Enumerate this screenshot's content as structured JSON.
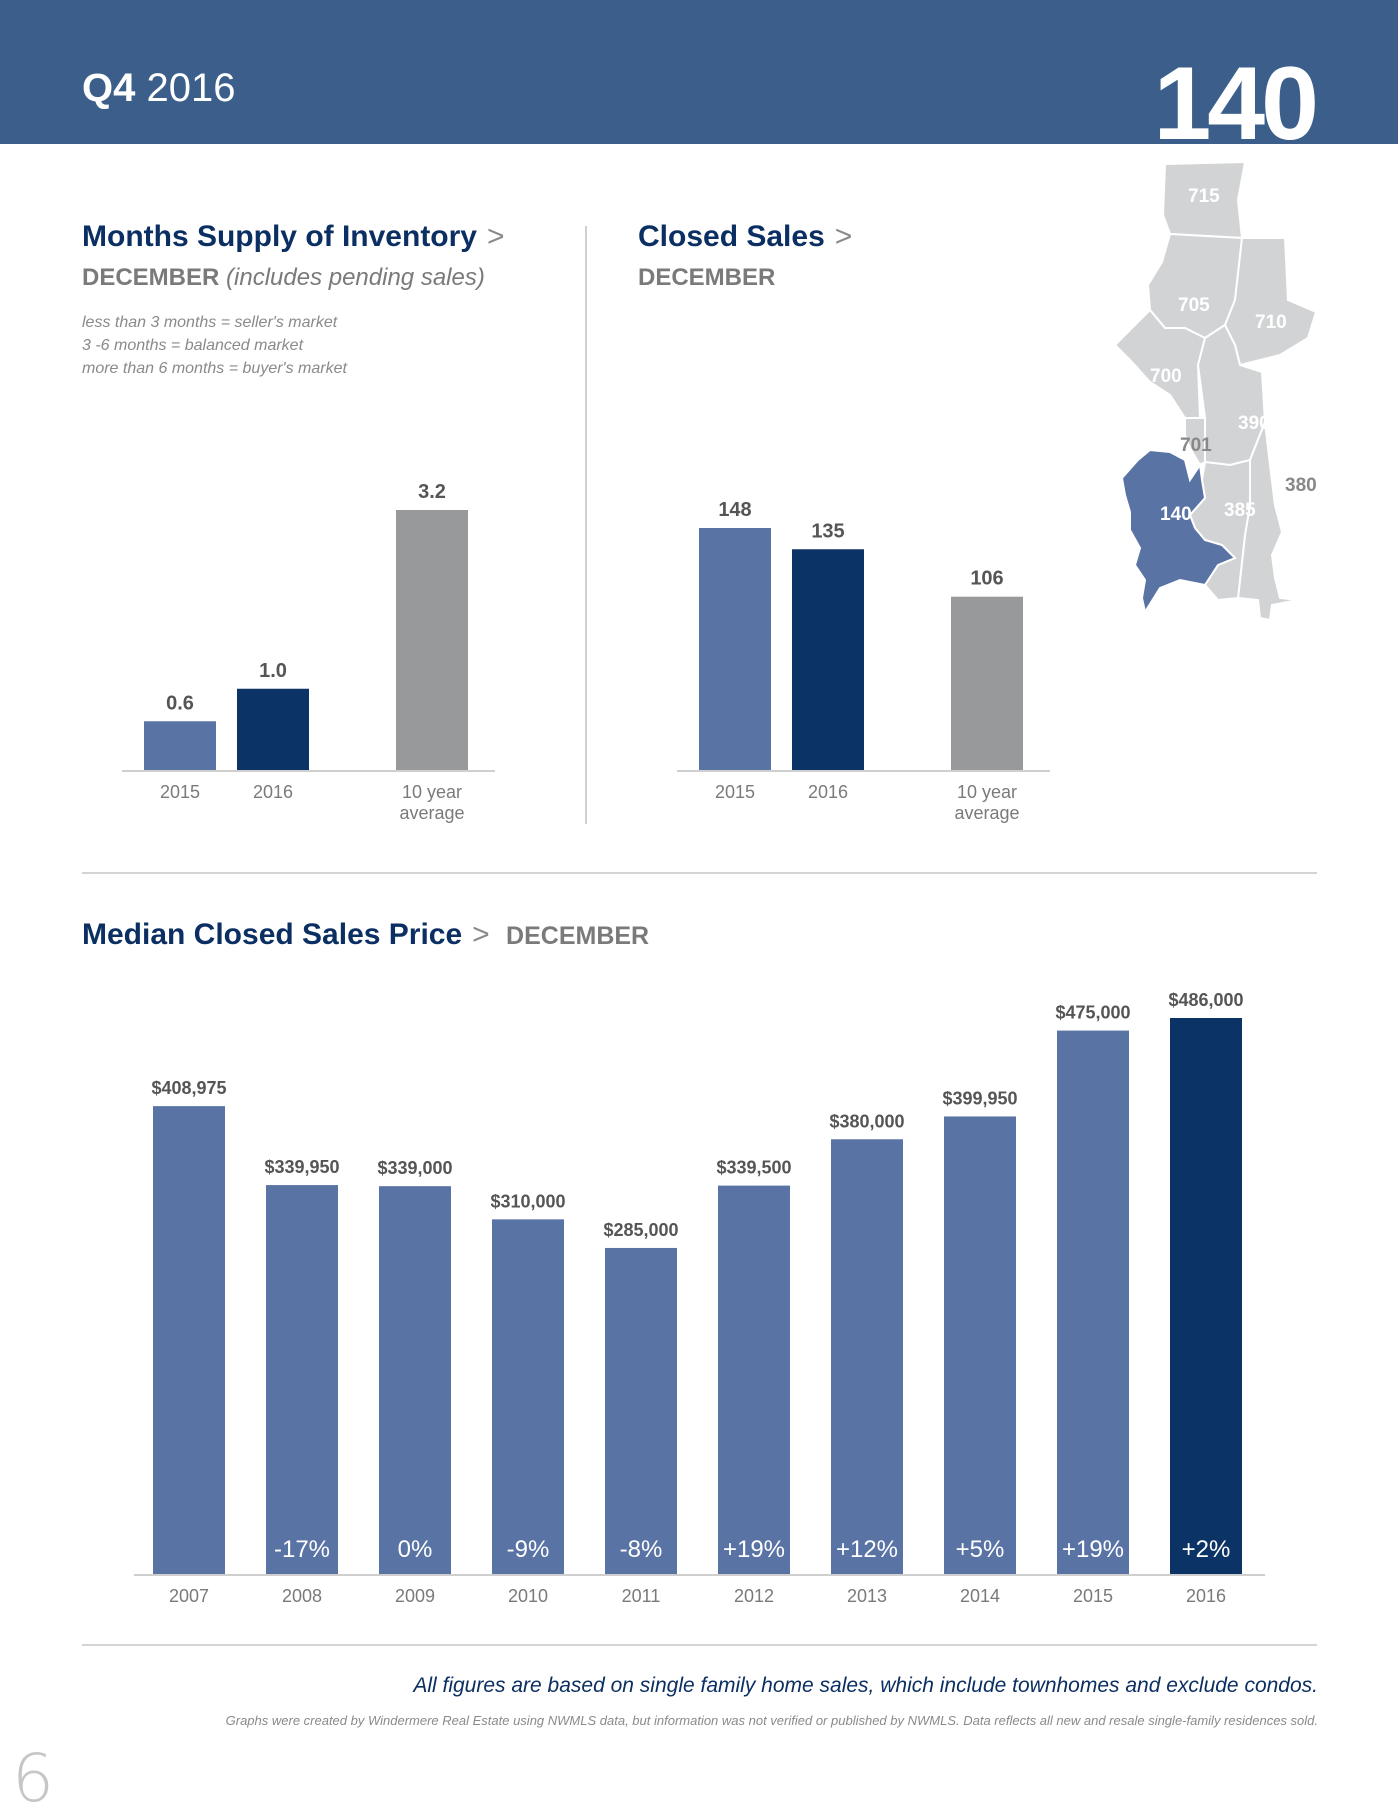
{
  "header": {
    "quarter_bold": "Q4",
    "year": "2016",
    "area_number": "140"
  },
  "months_supply": {
    "title": "Months Supply of Inventory",
    "arrow": ">",
    "subtitle": "DECEMBER",
    "subtitle_note": "(includes pending sales)",
    "legend": [
      "less than 3 months = seller's market",
      "3 -6 months = balanced market",
      "more than 6 months = buyer's market"
    ]
  },
  "closed_sales": {
    "title": "Closed Sales",
    "arrow": ">",
    "subtitle": "DECEMBER"
  },
  "median_price": {
    "title": "Median Closed Sales Price",
    "arrow": ">",
    "subtitle": "DECEMBER"
  },
  "map": {
    "regions": [
      "715",
      "705",
      "710",
      "700",
      "390",
      "701",
      "380",
      "140",
      "385"
    ],
    "highlight": "140",
    "colors": {
      "base": "#d2d3d5",
      "highlight": "#5a73a5"
    }
  },
  "colors": {
    "header": "#3b5f8a",
    "bar_light": "#5a73a5",
    "bar_dark": "#0b3365",
    "bar_gray": "#98999b",
    "title_navy": "#0b2f62"
  },
  "footer": {
    "footnote": "All figures are based on single family home sales, which include townhomes and exclude condos.",
    "disclaimer": "Graphs were created by Windermere Real Estate using NWMLS data, but information was not verified or published by NWMLS. Data reflects all new and resale single-family residences sold.",
    "page_number": "6"
  },
  "chart_data": [
    {
      "type": "bar",
      "title": "Months Supply of Inventory",
      "categories": [
        "2015",
        "2016",
        "10 year average"
      ],
      "category_lines": [
        [
          "2015"
        ],
        [
          "2016"
        ],
        [
          "10 year",
          "average"
        ]
      ],
      "values": [
        0.6,
        1.0,
        3.2
      ],
      "value_labels": [
        "0.6",
        "1.0",
        "3.2"
      ],
      "bar_colors": [
        "#5a73a5",
        "#0b3365",
        "#98999b"
      ],
      "ylim": [
        0,
        3.2
      ],
      "grid": false
    },
    {
      "type": "bar",
      "title": "Closed Sales",
      "categories": [
        "2015",
        "2016",
        "10 year average"
      ],
      "category_lines": [
        [
          "2015"
        ],
        [
          "2016"
        ],
        [
          "10 year",
          "average"
        ]
      ],
      "values": [
        148,
        135,
        106
      ],
      "value_labels": [
        "148",
        "135",
        "106"
      ],
      "bar_colors": [
        "#5a73a5",
        "#0b3365",
        "#98999b"
      ],
      "ylim": [
        0,
        148
      ],
      "grid": false
    },
    {
      "type": "bar",
      "title": "Median Closed Sales Price",
      "categories": [
        "2007",
        "2008",
        "2009",
        "2010",
        "2011",
        "2012",
        "2013",
        "2014",
        "2015",
        "2016"
      ],
      "values": [
        408975,
        339950,
        339000,
        310000,
        285000,
        339500,
        380000,
        399950,
        475000,
        486000
      ],
      "value_labels": [
        "$408,975",
        "$339,950",
        "$339,000",
        "$310,000",
        "$285,000",
        "$339,500",
        "$380,000",
        "$399,950",
        "$475,000",
        "$486,000"
      ],
      "change_labels": [
        "",
        "-17%",
        "0%",
        "-9%",
        "-8%",
        "+19%",
        "+12%",
        "+5%",
        "+19%",
        "+2%"
      ],
      "bar_colors": [
        "#5a73a5",
        "#5a73a5",
        "#5a73a5",
        "#5a73a5",
        "#5a73a5",
        "#5a73a5",
        "#5a73a5",
        "#5a73a5",
        "#5a73a5",
        "#0b3365"
      ],
      "ylim": [
        0,
        486000
      ],
      "grid": false
    }
  ]
}
